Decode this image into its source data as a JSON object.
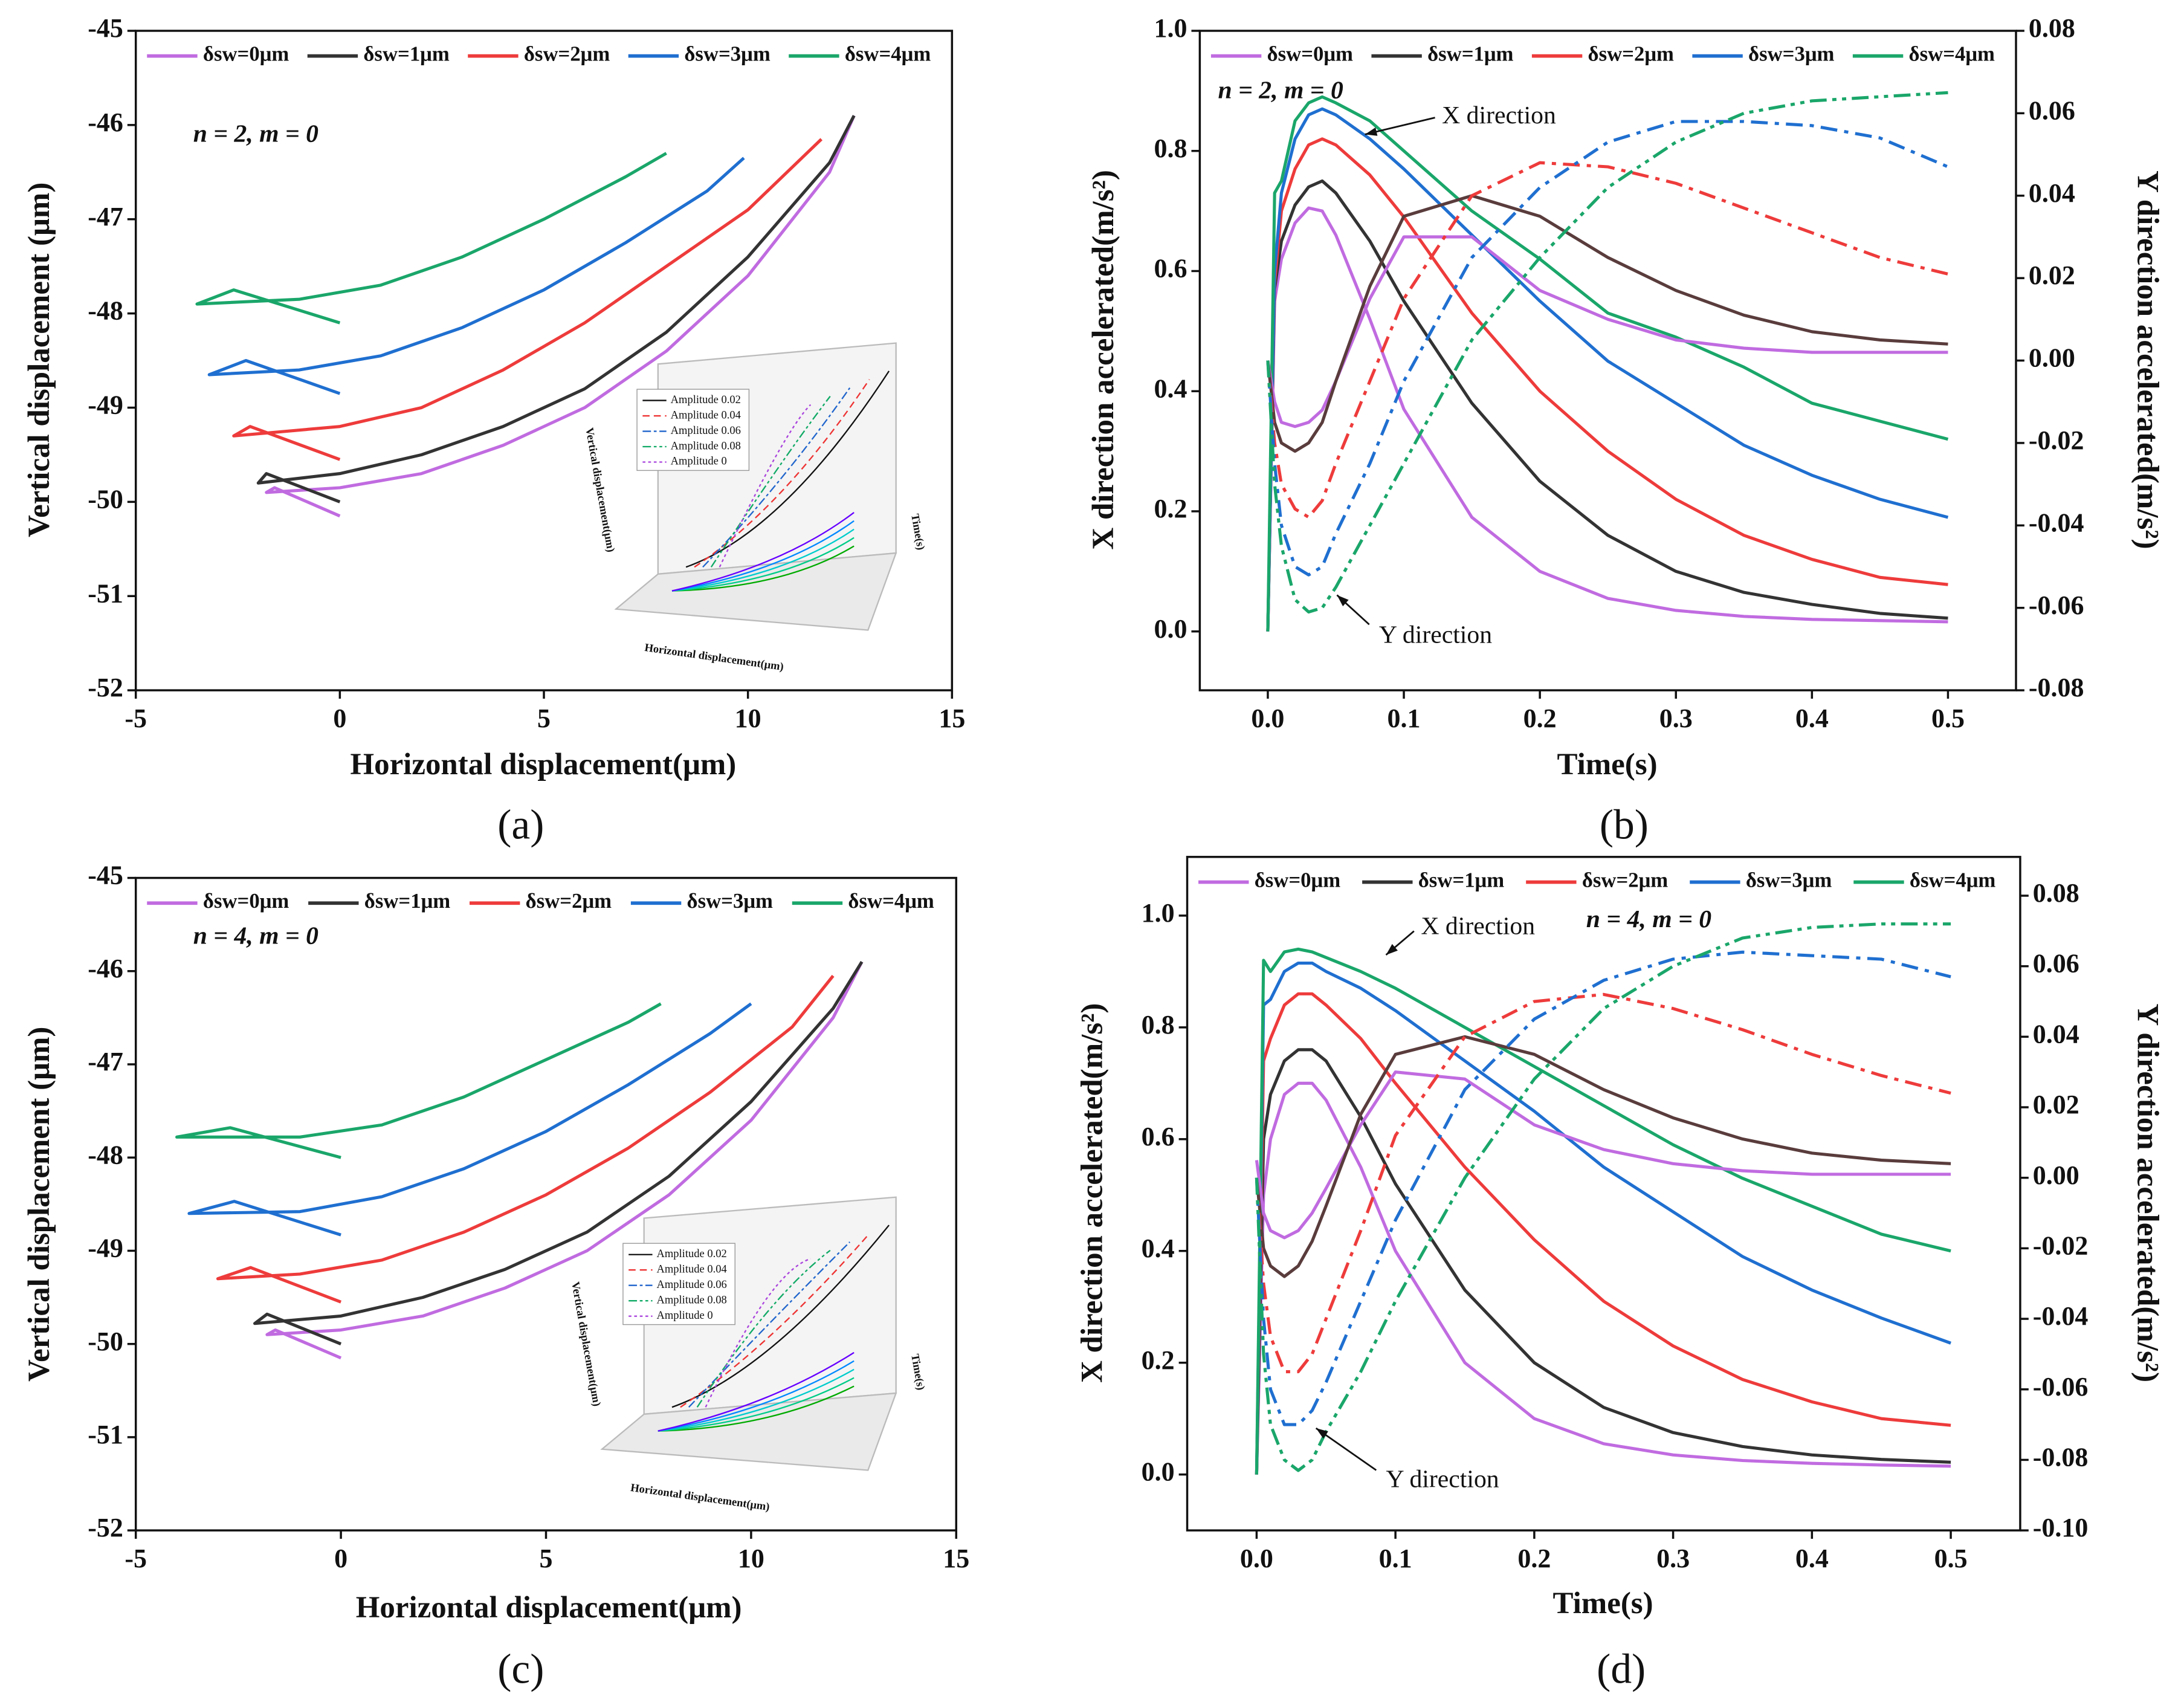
{
  "chart_data": [
    {
      "type": "line",
      "panel": "(a)",
      "xlabel": "Horizontal displacement(μm)",
      "ylabel": "Vertical displacement (μm)",
      "annotations": [
        "n = 2, m = 0"
      ],
      "xlim": [
        -5,
        15
      ],
      "ylim": [
        -52,
        -45
      ],
      "xticks": [
        -5,
        0,
        5,
        10,
        15
      ],
      "yticks": [
        -52,
        -51,
        -50,
        -49,
        -48,
        -47,
        -46,
        -45
      ],
      "series": [
        {
          "name": "δsw=0μm",
          "color": "#c06be0",
          "x": [
            0,
            -1.6,
            -1.8,
            0,
            2,
            4,
            6,
            8,
            10,
            12,
            12.6
          ],
          "values": [
            -50.15,
            -49.85,
            -49.9,
            -49.85,
            -49.7,
            -49.4,
            -49,
            -48.4,
            -47.6,
            -46.5,
            -45.9
          ]
        },
        {
          "name": "δsw=1μm",
          "color": "#333333",
          "x": [
            0,
            -1.8,
            -2.0,
            0,
            2,
            4,
            6,
            8,
            10,
            12,
            12.6
          ],
          "values": [
            -50,
            -49.7,
            -49.8,
            -49.7,
            -49.5,
            -49.2,
            -48.8,
            -48.2,
            -47.4,
            -46.4,
            -45.9
          ]
        },
        {
          "name": "δsw=2μm",
          "color": "#ee3b3b",
          "x": [
            0,
            -2.2,
            -2.6,
            0,
            2,
            4,
            6,
            8,
            10,
            11.8
          ],
          "values": [
            -49.55,
            -49.2,
            -49.3,
            -49.2,
            -49,
            -48.6,
            -48.1,
            -47.5,
            -46.9,
            -46.15
          ]
        },
        {
          "name": "δsw=3μm",
          "color": "#1f6fd0",
          "x": [
            0,
            -2.3,
            -3.2,
            -1,
            1,
            3,
            5,
            7,
            9,
            9.9
          ],
          "values": [
            -48.85,
            -48.5,
            -48.65,
            -48.6,
            -48.45,
            -48.15,
            -47.75,
            -47.25,
            -46.7,
            -46.35
          ]
        },
        {
          "name": "δsw=4μm",
          "color": "#1aa66a",
          "x": [
            0,
            -2.6,
            -3.5,
            -1,
            1,
            3,
            5,
            7,
            8
          ],
          "values": [
            -48.1,
            -47.75,
            -47.9,
            -47.85,
            -47.7,
            -47.4,
            -47,
            -46.55,
            -46.3
          ]
        }
      ],
      "inset": {
        "legend": [
          "Amplitude 0.02",
          "Amplitude 0.04",
          "Amplitude 0.06",
          "Amplitude 0.08",
          "Amplitude 0"
        ],
        "xlabel": "Horizontal displacement(μm)",
        "ylabel": "Vertical displacement(μm)",
        "zlabel": "Time(s)"
      }
    },
    {
      "type": "line",
      "panel": "(b)",
      "xlabel": "Time(s)",
      "ylabel": "X direction accelerated(m/s²)",
      "y2label": "Y direction accelerated(m/s²)",
      "annotations": [
        "n = 2, m = 0",
        "X direction",
        "Y direction"
      ],
      "xlim": [
        -0.05,
        0.55
      ],
      "ylim": [
        -0.098,
        1.0
      ],
      "y2lim": [
        -0.08,
        0.08
      ],
      "xticks": [
        {
          "value": 0,
          "label": "0.0"
        },
        0.1,
        0.2,
        0.3,
        0.4,
        0.5
      ],
      "yticks": [
        {
          "value": 0,
          "label": "0.0"
        },
        0.2,
        0.4,
        0.6,
        0.8,
        {
          "value": 1,
          "label": "1.0"
        }
      ],
      "y2ticks": [
        {
          "value": -0.08,
          "label": "-0.08"
        },
        {
          "value": -0.06,
          "label": "-0.06"
        },
        {
          "value": -0.04,
          "label": "-0.04"
        },
        {
          "value": -0.02,
          "label": "-0.02"
        },
        {
          "value": 0,
          "label": "0.00"
        },
        {
          "value": 0.02,
          "label": "0.02"
        },
        {
          "value": 0.04,
          "label": "0.04"
        },
        {
          "value": 0.06,
          "label": "0.06"
        },
        {
          "value": 0.08,
          "label": "0.08"
        }
      ],
      "x": [
        0,
        0.005,
        0.01,
        0.02,
        0.03,
        0.04,
        0.05,
        0.075,
        0.1,
        0.15,
        0.2,
        0.25,
        0.3,
        0.35,
        0.4,
        0.45,
        0.5
      ],
      "series": [
        {
          "name": "δsw=0μm",
          "color": "#c06be0",
          "values": [
            0,
            0.55,
            0.62,
            0.68,
            0.705,
            0.7,
            0.66,
            0.52,
            0.37,
            0.19,
            0.1,
            0.055,
            0.035,
            0.025,
            0.02,
            0.018,
            0.016
          ]
        },
        {
          "name": "δsw=1μm",
          "color": "#333333",
          "values": [
            0,
            0.57,
            0.65,
            0.71,
            0.74,
            0.75,
            0.73,
            0.65,
            0.55,
            0.38,
            0.25,
            0.16,
            0.1,
            0.065,
            0.045,
            0.03,
            0.022
          ]
        },
        {
          "name": "δsw=2μm",
          "color": "#ee3b3b",
          "values": [
            0,
            0.58,
            0.7,
            0.77,
            0.81,
            0.82,
            0.81,
            0.76,
            0.69,
            0.53,
            0.4,
            0.3,
            0.22,
            0.16,
            0.12,
            0.09,
            0.078
          ]
        },
        {
          "name": "δsw=3μm",
          "color": "#1f6fd0",
          "values": [
            0,
            0.6,
            0.73,
            0.82,
            0.86,
            0.87,
            0.86,
            0.82,
            0.77,
            0.66,
            0.55,
            0.45,
            0.38,
            0.31,
            0.26,
            0.22,
            0.19
          ]
        },
        {
          "name": "δsw=4μm",
          "color": "#1aa66a",
          "values": [
            0,
            0.73,
            0.75,
            0.85,
            0.88,
            0.89,
            0.88,
            0.85,
            0.8,
            0.7,
            0.62,
            0.53,
            0.49,
            0.44,
            0.38,
            0.35,
            0.32
          ]
        },
        {
          "color": "#c06be0",
          "axis": "y2",
          "dash": true,
          "values": [
            0,
            -0.01,
            -0.015,
            -0.016,
            -0.015,
            -0.012,
            -0.005,
            0.015,
            0.03,
            0.03,
            0.017,
            0.01,
            0.005,
            0.003,
            0.002,
            0.002,
            0.002
          ]
        },
        {
          "color": "#5a3c3c",
          "axis": "y2",
          "dash": true,
          "values": [
            0,
            -0.015,
            -0.02,
            -0.022,
            -0.02,
            -0.015,
            -0.005,
            0.018,
            0.035,
            0.04,
            0.035,
            0.025,
            0.017,
            0.011,
            0.007,
            0.005,
            0.004
          ]
        },
        {
          "color": "#ee3b3b",
          "axis": "y2",
          "dash": true,
          "values": [
            0,
            -0.02,
            -0.03,
            -0.036,
            -0.038,
            -0.034,
            -0.025,
            -0.005,
            0.015,
            0.04,
            0.048,
            0.047,
            0.043,
            0.037,
            0.031,
            0.025,
            0.021
          ]
        },
        {
          "color": "#1f6fd0",
          "axis": "y2",
          "dash": true,
          "values": [
            0,
            -0.025,
            -0.04,
            -0.05,
            -0.052,
            -0.05,
            -0.042,
            -0.025,
            -0.005,
            0.025,
            0.042,
            0.053,
            0.058,
            0.058,
            0.057,
            0.054,
            0.047
          ]
        },
        {
          "color": "#1aa66a",
          "axis": "y2",
          "dash": true,
          "values": [
            0,
            -0.03,
            -0.045,
            -0.058,
            -0.061,
            -0.06,
            -0.055,
            -0.04,
            -0.025,
            0.005,
            0.025,
            0.042,
            0.053,
            0.06,
            0.063,
            0.064,
            0.065
          ]
        }
      ]
    },
    {
      "type": "line",
      "panel": "(c)",
      "xlabel": "Horizontal displacement(μm)",
      "ylabel": "Vertical displacement (μm)",
      "annotations": [
        "n = 4, m = 0"
      ],
      "xlim": [
        -5,
        15
      ],
      "ylim": [
        -52,
        -45
      ],
      "xticks": [
        -5,
        0,
        5,
        10,
        15
      ],
      "yticks": [
        -52,
        -51,
        -50,
        -49,
        -48,
        -47,
        -46,
        -45
      ],
      "series": [
        {
          "name": "δsw=0μm",
          "color": "#c06be0",
          "x": [
            0,
            -1.6,
            -1.8,
            0,
            2,
            4,
            6,
            8,
            10,
            12,
            12.7
          ],
          "values": [
            -50.15,
            -49.85,
            -49.9,
            -49.85,
            -49.7,
            -49.4,
            -49,
            -48.4,
            -47.6,
            -46.5,
            -45.9
          ]
        },
        {
          "name": "δsw=1μm",
          "color": "#333333",
          "x": [
            0,
            -1.8,
            -2.1,
            0,
            2,
            4,
            6,
            8,
            10,
            12,
            12.7
          ],
          "values": [
            -50,
            -49.68,
            -49.78,
            -49.7,
            -49.5,
            -49.2,
            -48.8,
            -48.2,
            -47.4,
            -46.4,
            -45.9
          ]
        },
        {
          "name": "δsw=2μm",
          "color": "#ee3b3b",
          "x": [
            0,
            -2.2,
            -3.0,
            -1,
            1,
            3,
            5,
            7,
            9,
            11,
            12
          ],
          "values": [
            -49.55,
            -49.18,
            -49.3,
            -49.25,
            -49.1,
            -48.8,
            -48.4,
            -47.9,
            -47.3,
            -46.6,
            -46.05
          ]
        },
        {
          "name": "δsw=3μm",
          "color": "#1f6fd0",
          "x": [
            0,
            -2.6,
            -3.7,
            -1,
            1,
            3,
            5,
            7,
            9,
            10
          ],
          "values": [
            -48.83,
            -48.47,
            -48.6,
            -48.58,
            -48.42,
            -48.12,
            -47.72,
            -47.22,
            -46.67,
            -46.35
          ]
        },
        {
          "name": "δsw=4μm",
          "color": "#1aa66a",
          "x": [
            0,
            -2.7,
            -4.0,
            -1,
            1,
            3,
            5,
            7,
            7.8
          ],
          "values": [
            -48,
            -47.68,
            -47.78,
            -47.78,
            -47.65,
            -47.35,
            -46.95,
            -46.55,
            -46.35
          ]
        }
      ],
      "inset": {
        "legend": [
          "Amplitude 0.02",
          "Amplitude 0.04",
          "Amplitude 0.06",
          "Amplitude 0.08",
          "Amplitude 0"
        ],
        "xlabel": "Horizontal displacement(μm)",
        "ylabel": "Vertical displacement(μm)",
        "zlabel": "Time(s)"
      }
    },
    {
      "type": "line",
      "panel": "(d)",
      "xlabel": "Time(s)",
      "ylabel": "X direction accelerated(m/s²)",
      "y2label": "Y direction accelerated(m/s²)",
      "annotations": [
        "n = 4, m = 0",
        "X direction",
        "Y direction"
      ],
      "xlim": [
        -0.05,
        0.55
      ],
      "ylim": [
        -0.1,
        1.105
      ],
      "y2lim": [
        -0.1,
        0.091
      ],
      "xticks": [
        {
          "value": 0,
          "label": "0.0"
        },
        0.1,
        0.2,
        0.3,
        0.4,
        0.5
      ],
      "yticks": [
        {
          "value": 0,
          "label": "0.0"
        },
        0.2,
        0.4,
        0.6,
        0.8,
        {
          "value": 1,
          "label": "1.0"
        }
      ],
      "y2ticks": [
        {
          "value": -0.1,
          "label": "-0.10"
        },
        {
          "value": -0.08,
          "label": "-0.08"
        },
        {
          "value": -0.06,
          "label": "-0.06"
        },
        {
          "value": -0.04,
          "label": "-0.04"
        },
        {
          "value": -0.02,
          "label": "-0.02"
        },
        {
          "value": 0,
          "label": "0.00"
        },
        {
          "value": 0.02,
          "label": "0.02"
        },
        {
          "value": 0.04,
          "label": "0.04"
        },
        {
          "value": 0.06,
          "label": "0.06"
        },
        {
          "value": 0.08,
          "label": "0.08"
        }
      ],
      "x": [
        0,
        0.005,
        0.01,
        0.02,
        0.03,
        0.04,
        0.05,
        0.075,
        0.1,
        0.15,
        0.2,
        0.25,
        0.3,
        0.35,
        0.4,
        0.45,
        0.5
      ],
      "series": [
        {
          "name": "δsw=0μm",
          "color": "#c06be0",
          "values": [
            0,
            0.5,
            0.6,
            0.68,
            0.7,
            0.7,
            0.67,
            0.55,
            0.4,
            0.2,
            0.1,
            0.055,
            0.035,
            0.025,
            0.02,
            0.017,
            0.015
          ]
        },
        {
          "name": "δsw=1μm",
          "color": "#333333",
          "values": [
            0,
            0.6,
            0.68,
            0.74,
            0.76,
            0.76,
            0.74,
            0.64,
            0.52,
            0.33,
            0.2,
            0.12,
            0.075,
            0.05,
            0.035,
            0.027,
            0.022
          ]
        },
        {
          "name": "δsw=2μm",
          "color": "#ee3b3b",
          "values": [
            0,
            0.74,
            0.78,
            0.84,
            0.86,
            0.86,
            0.84,
            0.78,
            0.7,
            0.55,
            0.42,
            0.31,
            0.23,
            0.17,
            0.13,
            0.1,
            0.088
          ]
        },
        {
          "name": "δsw=3μm",
          "color": "#1f6fd0",
          "values": [
            0,
            0.84,
            0.85,
            0.9,
            0.915,
            0.915,
            0.9,
            0.87,
            0.83,
            0.74,
            0.65,
            0.55,
            0.47,
            0.39,
            0.33,
            0.28,
            0.235
          ]
        },
        {
          "name": "δsw=4μm",
          "color": "#1aa66a",
          "values": [
            0,
            0.92,
            0.9,
            0.935,
            0.94,
            0.935,
            0.925,
            0.9,
            0.87,
            0.8,
            0.73,
            0.66,
            0.59,
            0.53,
            0.48,
            0.43,
            0.4
          ]
        },
        {
          "color": "#c06be0",
          "axis": "y2",
          "dash": true,
          "values": [
            0.005,
            -0.01,
            -0.015,
            -0.017,
            -0.015,
            -0.01,
            -0.003,
            0.015,
            0.03,
            0.028,
            0.015,
            0.008,
            0.004,
            0.002,
            0.001,
            0.001,
            0.001
          ]
        },
        {
          "color": "#5a3c3c",
          "axis": "y2",
          "dash": true,
          "values": [
            0,
            -0.02,
            -0.025,
            -0.028,
            -0.025,
            -0.018,
            -0.008,
            0.018,
            0.035,
            0.04,
            0.035,
            0.025,
            0.017,
            0.011,
            0.007,
            0.005,
            0.004
          ]
        },
        {
          "color": "#ee3b3b",
          "axis": "y2",
          "dash": true,
          "values": [
            0,
            -0.03,
            -0.045,
            -0.055,
            -0.055,
            -0.05,
            -0.04,
            -0.015,
            0.012,
            0.04,
            0.05,
            0.052,
            0.048,
            0.042,
            0.035,
            0.029,
            0.024
          ]
        },
        {
          "color": "#1f6fd0",
          "axis": "y2",
          "dash": true,
          "values": [
            0,
            -0.04,
            -0.06,
            -0.07,
            -0.07,
            -0.066,
            -0.058,
            -0.035,
            -0.012,
            0.025,
            0.045,
            0.056,
            0.062,
            0.064,
            0.063,
            0.062,
            0.057
          ]
        },
        {
          "color": "#1aa66a",
          "axis": "y2",
          "dash": true,
          "values": [
            0,
            -0.05,
            -0.07,
            -0.08,
            -0.083,
            -0.08,
            -0.072,
            -0.055,
            -0.035,
            0,
            0.028,
            0.048,
            0.06,
            0.068,
            0.071,
            0.072,
            0.072
          ]
        }
      ]
    }
  ]
}
